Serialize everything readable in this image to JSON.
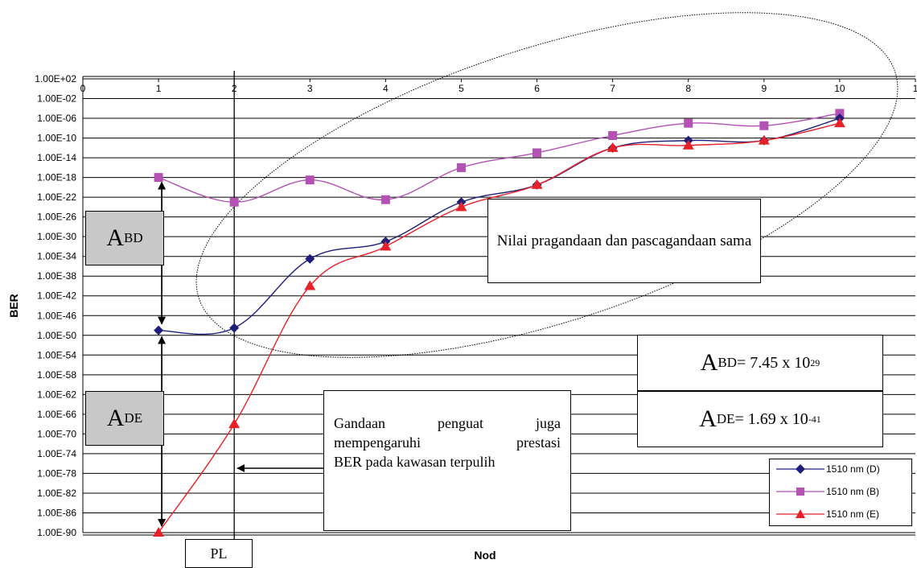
{
  "chart_data": {
    "type": "line",
    "xlabel": "Nod",
    "ylabel": "BER",
    "x_ticks": [
      "0",
      "1",
      "2",
      "3",
      "4",
      "5",
      "6",
      "7",
      "8",
      "9",
      "10",
      "1"
    ],
    "y_ticks": [
      "1.00E+02",
      "1.00E-02",
      "1.00E-06",
      "1.00E-10",
      "1.00E-14",
      "1.00E-18",
      "1.00E-22",
      "1.00E-26",
      "1.00E-30",
      "1.00E-34",
      "1.00E-38",
      "1.00E-42",
      "1.00E-46",
      "1.00E-50",
      "1.00E-54",
      "1.00E-58",
      "1.00E-62",
      "1.00E-66",
      "1.00E-70",
      "1.00E-74",
      "1.00E-78",
      "1.00E-82",
      "1.00E-86",
      "1.00E-90"
    ],
    "xlim": [
      0,
      11
    ],
    "y_log_exponent_range": [
      -90,
      2
    ],
    "grid": true,
    "legend_position": "bottom-right",
    "series": [
      {
        "name": "1510 nm (D)",
        "color": "#1f1f7a",
        "marker": "diamond",
        "x": [
          1,
          2,
          3,
          4,
          5,
          6,
          7,
          8,
          9,
          10
        ],
        "y_exponent": [
          -49,
          -48.5,
          -34.5,
          -31,
          -23,
          -19.5,
          -12,
          -10.5,
          -10.5,
          -6
        ]
      },
      {
        "name": "1510 nm (B)",
        "color": "#b452b4",
        "marker": "square",
        "x": [
          1,
          2,
          3,
          4,
          5,
          6,
          7,
          8,
          9,
          10
        ],
        "y_exponent": [
          -18,
          -23,
          -18.5,
          -22.5,
          -16,
          -13,
          -9.5,
          -7,
          -7.5,
          -5
        ]
      },
      {
        "name": "1510 nm (E)",
        "color": "#e8202a",
        "marker": "triangle",
        "x": [
          1,
          2,
          3,
          4,
          5,
          6,
          7,
          8,
          9,
          10
        ],
        "y_exponent": [
          -90,
          -68,
          -40,
          -32,
          -24,
          -19.5,
          -12,
          -11.5,
          -10.5,
          -7
        ]
      }
    ]
  },
  "annotations": {
    "abd": {
      "main": "A",
      "sub": "BD"
    },
    "ade": {
      "main": "A",
      "sub": "DE"
    },
    "ellipse_note": "Nilai pragandaan dan pascagandaan sama",
    "gain_note": [
      "Gandaan",
      "penguat",
      "juga",
      "mempengaruhi",
      "prestasi",
      "BER pada kawasan terpulih"
    ],
    "formula_abd": {
      "main": "A",
      "sub": "BD",
      "rest": " = 7.45 x 10",
      "exp": "29"
    },
    "formula_ade": {
      "main": "A",
      "sub": "DE",
      "rest": " = 1.69 x 10",
      "exp": "-41"
    },
    "pl": "PL"
  },
  "colors": {
    "grid": "#000000",
    "plot_bg": "#ffffff",
    "grey_box": "#c8c8c8"
  }
}
